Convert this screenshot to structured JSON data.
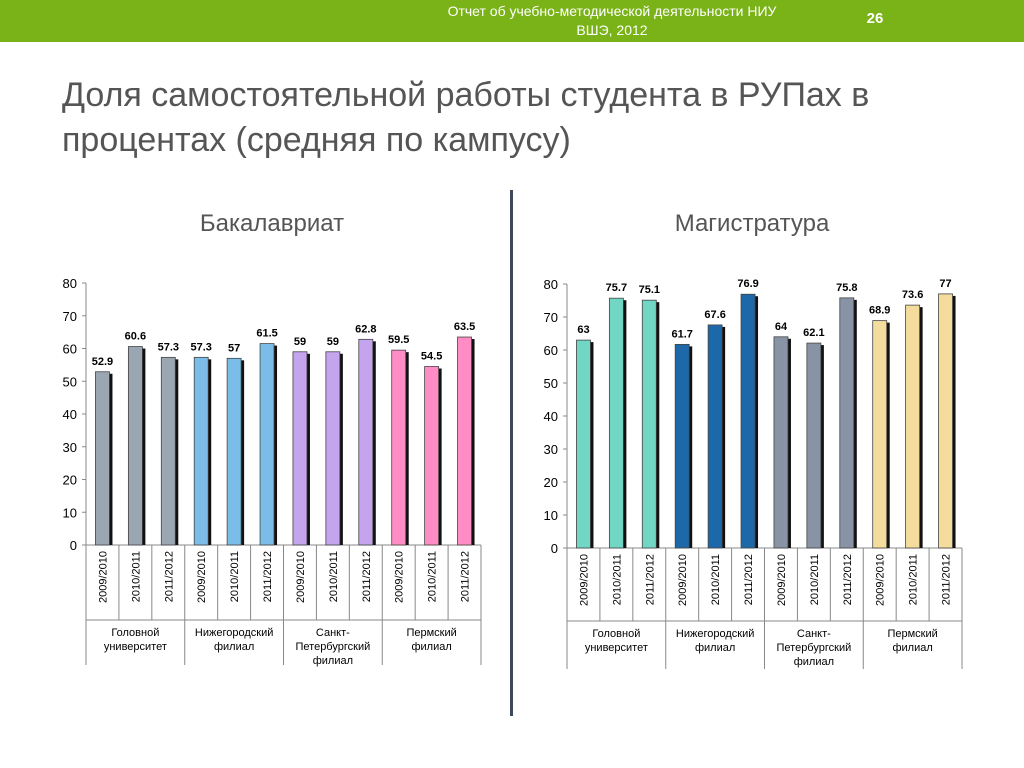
{
  "header": {
    "report_line1": "Отчет об учебно-методической деятельности НИУ",
    "report_line2": "ВШЭ, 2012",
    "page_number": "26",
    "bar_color": "#7ab317"
  },
  "slide": {
    "title_line1": "Доля самостоятельной работы студента в РУПах в",
    "title_line2": "процентах (средняя по кампусу)"
  },
  "chart_data": [
    {
      "type": "bar",
      "title": "Бакалавриат",
      "ylim": [
        0,
        80
      ],
      "yticks": [
        0,
        10,
        20,
        30,
        40,
        50,
        60,
        70,
        80
      ],
      "grid": false,
      "categories": [
        "2009/2010",
        "2010/2011",
        "2011/2012",
        "2009/2010",
        "2010/2011",
        "2011/2012",
        "2009/2010",
        "2010/2011",
        "2011/2012",
        "2009/2010",
        "2010/2011",
        "2011/2012"
      ],
      "value_labels": [
        "52.9",
        "60.6",
        "57.3",
        "57.3",
        "57",
        "61.5",
        "59",
        "59",
        "62.8",
        "59.5",
        "54.5",
        "63.5"
      ],
      "values": [
        52.9,
        60.6,
        57.3,
        57.3,
        57,
        61.5,
        59,
        59,
        62.8,
        59.5,
        54.5,
        63.5
      ],
      "groups": [
        {
          "label": [
            "Головной",
            "университет"
          ],
          "span": 3,
          "colors": [
            "#9aa6b2",
            "#9aa6b2",
            "#9aa6b2"
          ]
        },
        {
          "label": [
            "Нижегородский",
            "филиал"
          ],
          "span": 3,
          "colors": [
            "#7bbde8",
            "#7bbde8",
            "#7bbde8"
          ]
        },
        {
          "label": [
            "Санкт-",
            "Петербургский",
            "филиал"
          ],
          "span": 3,
          "colors": [
            "#c4a4ec",
            "#c4a4ec",
            "#c4a4ec"
          ]
        },
        {
          "label": [
            "Пермский",
            "филиал"
          ],
          "span": 3,
          "colors": [
            "#ff8cc4",
            "#ff8cc4",
            "#ff8cc4"
          ]
        }
      ]
    },
    {
      "type": "bar",
      "title": "Магистратура",
      "ylim": [
        0,
        80
      ],
      "yticks": [
        0,
        10,
        20,
        30,
        40,
        50,
        60,
        70,
        80
      ],
      "grid": false,
      "categories": [
        "2009/2010",
        "2010/2011",
        "2011/2012",
        "2009/2010",
        "2010/2011",
        "2011/2012",
        "2009/2010",
        "2010/2011",
        "2011/2012",
        "2009/2010",
        "2010/2011",
        "2011/2012"
      ],
      "value_labels": [
        "63",
        "75.7",
        "75.1",
        "61.7",
        "67.6",
        "76.9",
        "64",
        "62.1",
        "75.8",
        "68.9",
        "73.6",
        "77"
      ],
      "values": [
        63,
        75.7,
        75.1,
        61.7,
        67.6,
        76.9,
        64,
        62.1,
        75.8,
        68.9,
        73.6,
        77
      ],
      "groups": [
        {
          "label": [
            "Головной",
            "университет"
          ],
          "span": 3,
          "colors": [
            "#72d6c4",
            "#72d6c4",
            "#72d6c4"
          ]
        },
        {
          "label": [
            "Нижегородский",
            "филиал"
          ],
          "span": 3,
          "colors": [
            "#1d68a8",
            "#1d68a8",
            "#1d68a8"
          ]
        },
        {
          "label": [
            "Санкт-",
            "Петербургский",
            "филиал"
          ],
          "span": 3,
          "colors": [
            "#8894a6",
            "#8894a6",
            "#8894a6"
          ]
        },
        {
          "label": [
            "Пермский",
            "филиал"
          ],
          "span": 3,
          "colors": [
            "#f4dc9c",
            "#f4dc9c",
            "#f4dc9c"
          ]
        }
      ]
    }
  ]
}
